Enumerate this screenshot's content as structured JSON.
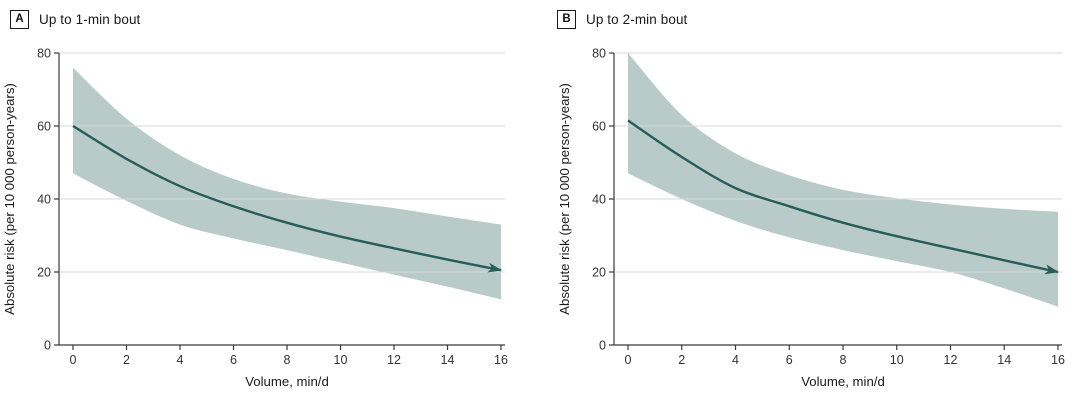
{
  "figure": {
    "background": "#ffffff",
    "x_axis_label": "Volume, min/d",
    "y_axis_label": "Absolute risk (per 10 000 person-years)"
  },
  "colors": {
    "band": "#b8cbc8",
    "line": "#275d58",
    "grid": "#d8d8d8",
    "axis": "#3a3a3a",
    "tick_text": "#333333",
    "title_text": "#1a1a1a"
  },
  "chart_data": [
    {
      "type": "area",
      "panel_letter": "A",
      "title": "Up to 1-min bout",
      "xlabel": "Volume, min/d",
      "ylabel": "Absolute risk (per 10 000 person-years)",
      "xlim": [
        0,
        16
      ],
      "ylim": [
        0,
        80
      ],
      "xticks": [
        0,
        2,
        4,
        6,
        8,
        10,
        12,
        14,
        16
      ],
      "yticks": [
        0,
        20,
        40,
        60,
        80
      ],
      "grid": true,
      "arrow_end": true,
      "x": [
        0,
        2,
        4,
        6,
        8,
        10,
        12,
        14,
        16
      ],
      "series": [
        {
          "name": "Absolute risk",
          "role": "mean",
          "values": [
            60,
            51,
            43.5,
            38,
            33.5,
            29.7,
            26.5,
            23.4,
            20.5
          ]
        },
        {
          "name": "95% CI upper",
          "role": "ci_upper",
          "values": [
            76,
            62,
            52,
            45.5,
            41.5,
            39.3,
            37.5,
            35.2,
            33
          ]
        },
        {
          "name": "95% CI lower",
          "role": "ci_lower",
          "values": [
            47,
            39.5,
            33,
            29.2,
            26,
            22.6,
            19.3,
            16,
            12.5
          ]
        }
      ]
    },
    {
      "type": "area",
      "panel_letter": "B",
      "title": "Up to 2-min bout",
      "xlabel": "Volume, min/d",
      "ylabel": "Absolute risk (per 10 000 person-years)",
      "xlim": [
        0,
        16
      ],
      "ylim": [
        0,
        80
      ],
      "xticks": [
        0,
        2,
        4,
        6,
        8,
        10,
        12,
        14,
        16
      ],
      "yticks": [
        0,
        20,
        40,
        60,
        80
      ],
      "grid": true,
      "arrow_end": true,
      "x": [
        0,
        2,
        4,
        6,
        8,
        10,
        12,
        14,
        16
      ],
      "series": [
        {
          "name": "Absolute risk",
          "role": "mean",
          "values": [
            61.5,
            51.5,
            43,
            38,
            33.5,
            29.8,
            26.5,
            23.2,
            20
          ]
        },
        {
          "name": "95% CI upper",
          "role": "ci_upper",
          "values": [
            80,
            63,
            52.5,
            46.5,
            42.5,
            40.2,
            38.5,
            37.3,
            36.5
          ]
        },
        {
          "name": "95% CI lower",
          "role": "ci_lower",
          "values": [
            47,
            40,
            34,
            29.5,
            26,
            23,
            20,
            15.5,
            10.5
          ]
        }
      ]
    }
  ]
}
